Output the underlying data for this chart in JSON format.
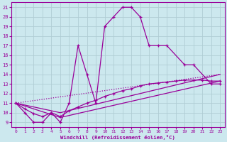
{
  "xlabel": "Windchill (Refroidissement éolien,°C)",
  "bg_color": "#cce8ee",
  "line_color": "#990099",
  "grid_color": "#b0cdd4",
  "xmin": 0,
  "xmax": 23,
  "ymin": 9,
  "ymax": 21,
  "yticks": [
    9,
    10,
    11,
    12,
    13,
    14,
    15,
    16,
    17,
    18,
    19,
    20,
    21
  ],
  "xticks": [
    0,
    1,
    2,
    3,
    4,
    5,
    6,
    7,
    8,
    9,
    10,
    11,
    12,
    13,
    14,
    15,
    16,
    17,
    18,
    19,
    20,
    21,
    22,
    23
  ],
  "curve1_x": [
    0,
    1,
    2,
    3,
    4,
    5,
    6,
    7,
    8,
    9,
    10,
    11,
    12,
    13,
    14,
    15,
    16,
    17,
    19,
    20,
    22,
    23
  ],
  "curve1_y": [
    11,
    10,
    9,
    9,
    10,
    9,
    11,
    17,
    14,
    11,
    19,
    20,
    21,
    21,
    20,
    17,
    17,
    17,
    15,
    15,
    13,
    13
  ],
  "curve2_x": [
    0,
    1,
    2,
    3,
    4,
    5,
    6,
    7,
    8,
    9,
    10,
    11,
    12,
    13,
    14,
    15,
    16,
    17,
    18,
    19,
    20,
    21,
    22,
    23
  ],
  "curve2_y": [
    11,
    10.4,
    9.9,
    9.6,
    10,
    9.6,
    10.2,
    10.6,
    11.0,
    11.3,
    11.7,
    12.0,
    12.3,
    12.5,
    12.8,
    13.0,
    13.1,
    13.2,
    13.3,
    13.4,
    13.4,
    13.4,
    13.3,
    13.3
  ],
  "line3_x": [
    0,
    5,
    23
  ],
  "line3_y": [
    11,
    10.0,
    14.0
  ],
  "line4_x": [
    0,
    5,
    23
  ],
  "line4_y": [
    11,
    9.5,
    13.3
  ]
}
